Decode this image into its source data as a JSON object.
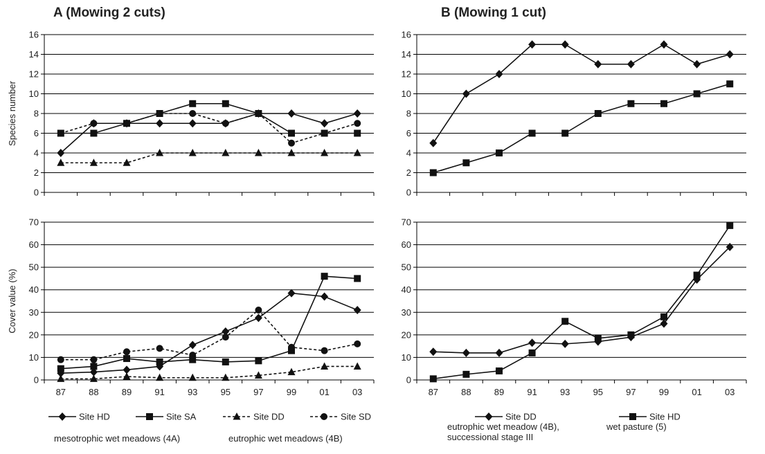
{
  "panels": {
    "A": {
      "title": "A (Mowing 2 cuts)"
    },
    "B": {
      "title": "B (Mowing 1 cut)"
    }
  },
  "x_categories": [
    "87",
    "88",
    "89",
    "91",
    "93",
    "95",
    "97",
    "99",
    "01",
    "03"
  ],
  "chart_data": [
    {
      "type": "line",
      "panel": "A",
      "ylabel": "Species number",
      "ylim": [
        0,
        16
      ],
      "yticks": [
        0,
        2,
        4,
        6,
        8,
        10,
        12,
        14,
        16
      ],
      "grid": true,
      "categories": [
        "87",
        "88",
        "89",
        "91",
        "93",
        "95",
        "97",
        "99",
        "01",
        "03"
      ],
      "series": [
        {
          "name": "Site HD",
          "marker": "diamond",
          "dashed": false,
          "values": [
            4,
            7,
            7,
            7,
            7,
            7,
            8,
            8,
            7,
            8
          ]
        },
        {
          "name": "Site SA",
          "marker": "square",
          "dashed": false,
          "values": [
            6,
            6,
            7,
            8,
            9,
            9,
            8,
            6,
            6,
            6
          ]
        },
        {
          "name": "Site DD",
          "marker": "triangle",
          "dashed": true,
          "values": [
            3,
            3,
            3,
            4,
            4,
            4,
            4,
            4,
            4,
            4
          ]
        },
        {
          "name": "Site SD",
          "marker": "circle",
          "dashed": true,
          "values": [
            6,
            7,
            7,
            8,
            8,
            7,
            8,
            5,
            6,
            7
          ]
        }
      ]
    },
    {
      "type": "line",
      "panel": "B",
      "ylabel": "",
      "ylim": [
        0,
        16
      ],
      "yticks": [
        0,
        2,
        4,
        6,
        8,
        10,
        12,
        14,
        16
      ],
      "grid": true,
      "categories": [
        "87",
        "88",
        "89",
        "91",
        "93",
        "95",
        "97",
        "99",
        "01",
        "03"
      ],
      "series": [
        {
          "name": "Site DD",
          "marker": "diamond",
          "dashed": false,
          "values": [
            5,
            10,
            12,
            15,
            15,
            13,
            13,
            15,
            13,
            14
          ]
        },
        {
          "name": "Site HD",
          "marker": "square",
          "dashed": false,
          "values": [
            2,
            3,
            4,
            6,
            6,
            8,
            9,
            9,
            10,
            11
          ]
        }
      ]
    },
    {
      "type": "line",
      "panel": "A",
      "ylabel": "Cover value (%)",
      "ylim": [
        0,
        70
      ],
      "yticks": [
        0,
        10,
        20,
        30,
        40,
        50,
        60,
        70
      ],
      "grid": true,
      "categories": [
        "87",
        "88",
        "89",
        "91",
        "93",
        "95",
        "97",
        "99",
        "01",
        "03"
      ],
      "series": [
        {
          "name": "Site HD",
          "marker": "diamond",
          "dashed": false,
          "values": [
            3,
            3.5,
            4.5,
            6,
            15.5,
            21.5,
            27.5,
            38.5,
            37,
            31
          ]
        },
        {
          "name": "Site SA",
          "marker": "square",
          "dashed": false,
          "values": [
            5,
            6,
            9.5,
            8,
            9,
            8,
            8.5,
            13,
            46,
            45
          ]
        },
        {
          "name": "Site DD",
          "marker": "triangle",
          "dashed": true,
          "values": [
            0.5,
            0.5,
            1.5,
            1,
            1,
            1,
            2,
            3.5,
            6,
            6
          ]
        },
        {
          "name": "Site SD",
          "marker": "circle",
          "dashed": true,
          "values": [
            9,
            9,
            12.5,
            14,
            11,
            19,
            31,
            14.5,
            13,
            16
          ]
        }
      ]
    },
    {
      "type": "line",
      "panel": "B",
      "ylabel": "",
      "ylim": [
        0,
        70
      ],
      "yticks": [
        0,
        10,
        20,
        30,
        40,
        50,
        60,
        70
      ],
      "grid": true,
      "categories": [
        "87",
        "88",
        "89",
        "91",
        "93",
        "95",
        "97",
        "99",
        "01",
        "03"
      ],
      "series": [
        {
          "name": "Site DD",
          "marker": "diamond",
          "dashed": false,
          "values": [
            12.5,
            12,
            12,
            16.5,
            16,
            17,
            19,
            25,
            44.5,
            59
          ]
        },
        {
          "name": "Site HD",
          "marker": "square",
          "dashed": false,
          "values": [
            0.5,
            2.5,
            4,
            12,
            26,
            18.5,
            20,
            28,
            46.5,
            68.5
          ]
        }
      ]
    }
  ],
  "legend_A": {
    "items": [
      {
        "name": "Site HD",
        "marker": "diamond",
        "dashed": false
      },
      {
        "name": "Site SA",
        "marker": "square",
        "dashed": false
      },
      {
        "name": "Site DD",
        "marker": "triangle",
        "dashed": true
      },
      {
        "name": "Site SD",
        "marker": "circle",
        "dashed": true
      }
    ],
    "notes": [
      "mesotrophic wet meadows (4A)",
      "eutrophic wet meadows (4B)"
    ]
  },
  "legend_B": {
    "items": [
      {
        "name": "Site DD",
        "marker": "diamond",
        "dashed": false
      },
      {
        "name": "Site HD",
        "marker": "square",
        "dashed": false
      }
    ],
    "notes_dd": [
      "eutrophic wet meadow (4B),",
      "successional stage III"
    ],
    "notes_hd": [
      "wet pasture (5)"
    ]
  },
  "colors": {
    "line": "#111111",
    "grid": "#000000",
    "axis": "#000000"
  }
}
